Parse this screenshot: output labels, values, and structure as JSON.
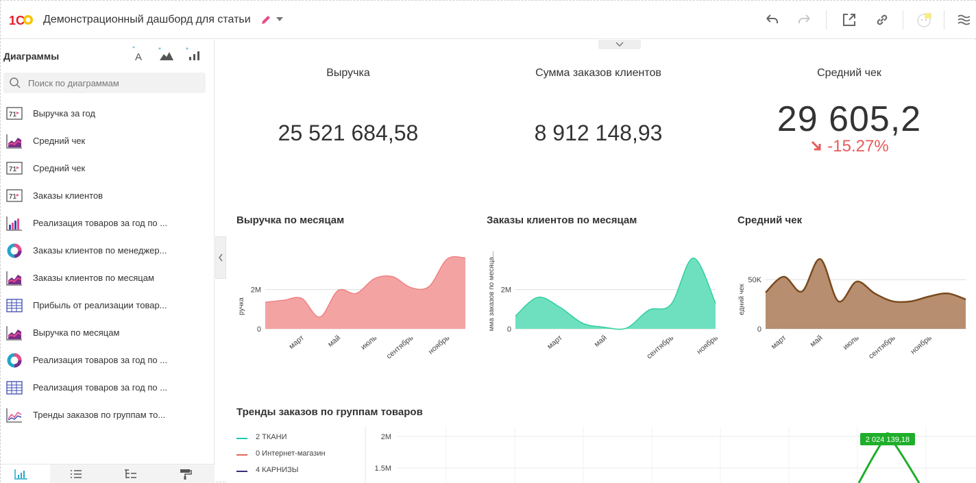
{
  "app": {
    "title": "Демонстрационный дашборд для статьи"
  },
  "colors": {
    "brand_red": "#e41d2d",
    "brand_yellow": "#f9c300",
    "accent_pink": "#e84c8a",
    "negative": "#e85a5a"
  },
  "toolbar": {
    "icons": [
      "undo-icon",
      "redo-icon",
      "open-external-icon",
      "link-icon",
      "avatar-icon",
      "menu-icon"
    ]
  },
  "sidebar": {
    "title": "Диаграммы",
    "header_icons": [
      "add-text-icon",
      "add-area-chart-icon",
      "add-bar-chart-icon"
    ],
    "search_placeholder": "Поиск по диаграммам",
    "items": [
      {
        "label": "Выручка за год",
        "icon": "indicator-icon"
      },
      {
        "label": "Средний чек",
        "icon": "area-chart-icon"
      },
      {
        "label": "Средний чек",
        "icon": "indicator-icon"
      },
      {
        "label": "Заказы клиентов",
        "icon": "indicator-icon"
      },
      {
        "label": "Реализация товаров за год по ...",
        "icon": "bar-chart-icon"
      },
      {
        "label": "Заказы клиентов по менеджер...",
        "icon": "donut-chart-icon"
      },
      {
        "label": "Заказы клиентов по месяцам",
        "icon": "area-chart-icon"
      },
      {
        "label": "Прибыль от реализации товар...",
        "icon": "table-icon"
      },
      {
        "label": "Выручка по месяцам",
        "icon": "area-chart-icon"
      },
      {
        "label": "Реализация товаров за год по ...",
        "icon": "donut-chart-icon"
      },
      {
        "label": "Реализация товаров за год по ...",
        "icon": "table-icon"
      },
      {
        "label": "Тренды заказов по группам то...",
        "icon": "line-chart-icon"
      }
    ],
    "bottom_tabs": [
      "charts-tab-icon",
      "list-tab-icon",
      "tree-tab-icon",
      "paint-tab-icon"
    ]
  },
  "kpis": [
    {
      "title": "Выручка",
      "value": "25 521 684,58"
    },
    {
      "title": "Сумма заказов клиентов",
      "value": "8 912 148,93"
    },
    {
      "title": "Средний чек",
      "value": "29 605,2",
      "delta": "-15.27%"
    }
  ],
  "chart_data": [
    {
      "type": "area",
      "title": "Выручка по месяцам",
      "ylabel": "ручка",
      "color": "#f4a3a3",
      "stroke": "#f08080",
      "yticks": [
        "0",
        "2M"
      ],
      "ytick_values": [
        0,
        2000000
      ],
      "ylim": [
        0,
        3900000
      ],
      "xtick_labels": [
        "март",
        "май",
        "июль",
        "сентябрь",
        "ноябрь"
      ],
      "xtick_index": [
        2,
        4,
        6,
        8,
        10
      ],
      "values": [
        1350000,
        1450000,
        1550000,
        600000,
        1950000,
        1800000,
        2550000,
        2650000,
        2100000,
        2150000,
        3550000,
        3600000
      ]
    },
    {
      "type": "area",
      "title": "Заказы клиентов по месяцам",
      "ylabel": "мма заказов по месяца...",
      "color": "#6fe0bf",
      "stroke": "#2fcf9f",
      "yticks": [
        "0",
        "2M"
      ],
      "ytick_values": [
        0,
        2000000
      ],
      "ylim": [
        0,
        3900000
      ],
      "xtick_labels": [
        "март",
        "май",
        "сентябрь",
        "ноябрь"
      ],
      "xtick_index": [
        2,
        4,
        7,
        9
      ],
      "values": [
        650000,
        1600000,
        1100000,
        300000,
        80000,
        40000,
        950000,
        1250000,
        3600000,
        1300000
      ]
    },
    {
      "type": "area",
      "title": "Средний чек",
      "ylabel": "едний чек",
      "color": "#b78e6f",
      "stroke": "#7a4a1e",
      "yticks": [
        "0",
        "50K"
      ],
      "ytick_values": [
        0,
        50000
      ],
      "ylim": [
        0,
        78000
      ],
      "xtick_labels": [
        "март",
        "май",
        "июль",
        "сентябрь",
        "ноябрь"
      ],
      "xtick_index": [
        1,
        3,
        5,
        7,
        9
      ],
      "values": [
        37000,
        53000,
        38000,
        71000,
        28000,
        48000,
        36000,
        28000,
        28000,
        33000,
        36000,
        30000
      ]
    },
    {
      "type": "line",
      "title": "Тренды заказов по группам товаров",
      "yticks": [
        "2M",
        "1.5M"
      ],
      "series": [
        {
          "name": "2 ТКАНИ",
          "color": "#21c9b0"
        },
        {
          "name": "0 Интернет-магазин",
          "color": "#e0675a"
        },
        {
          "name": "4 КАРНИЗЫ",
          "color": "#3a2a7a"
        }
      ],
      "tooltip": "2 024 139,18",
      "peak_value": 2024139.18
    }
  ]
}
